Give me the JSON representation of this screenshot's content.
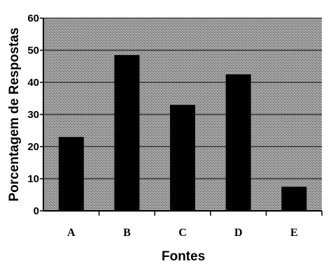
{
  "chart_data": {
    "type": "bar",
    "categories": [
      "A",
      "B",
      "C",
      "D",
      "E"
    ],
    "values": [
      23,
      48.5,
      33,
      42.5,
      7.5
    ],
    "xlabel": "Fontes",
    "ylabel": "Porcentagem de Respostas",
    "ylim": [
      0,
      60
    ],
    "yticks": [
      "0",
      "10",
      "20",
      "30",
      "40",
      "50",
      "60"
    ],
    "grid": true,
    "legend": "none",
    "colors": {
      "bar": "#000000",
      "plot_background": "#8f8f8f",
      "grid": "#222222"
    }
  }
}
